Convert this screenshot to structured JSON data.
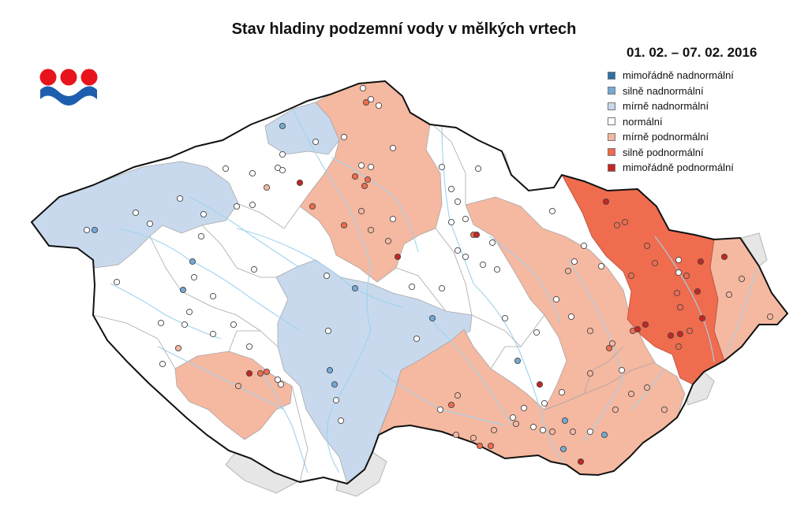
{
  "title": "Stav hladiny podzemní vody v mělkých vrtech",
  "date_range": "01. 02. – 07. 02. 2016",
  "logo_icon": "chmi-logo-icon",
  "legend": [
    {
      "key": "extremely-above",
      "label": "mimořádně nadnormální",
      "color": "#2c6fa8"
    },
    {
      "key": "strongly-above",
      "label": "silně nadnormální",
      "color": "#76a9d4"
    },
    {
      "key": "mildly-above",
      "label": "mírně nadnormální",
      "color": "#c8d9ee"
    },
    {
      "key": "normal",
      "label": "normální",
      "color": "#ffffff"
    },
    {
      "key": "mildly-below",
      "label": "mírně podnormální",
      "color": "#f5b8a0"
    },
    {
      "key": "strongly-below",
      "label": "silně podnormální",
      "color": "#ef6c4e"
    },
    {
      "key": "extremely-below",
      "label": "mimořádně podnormální",
      "color": "#c42624"
    }
  ],
  "colors": {
    "river": "#9fd3ee",
    "border": "#111111",
    "basin_line": "#a8a8a8",
    "outside": "#e6e6e6"
  }
}
